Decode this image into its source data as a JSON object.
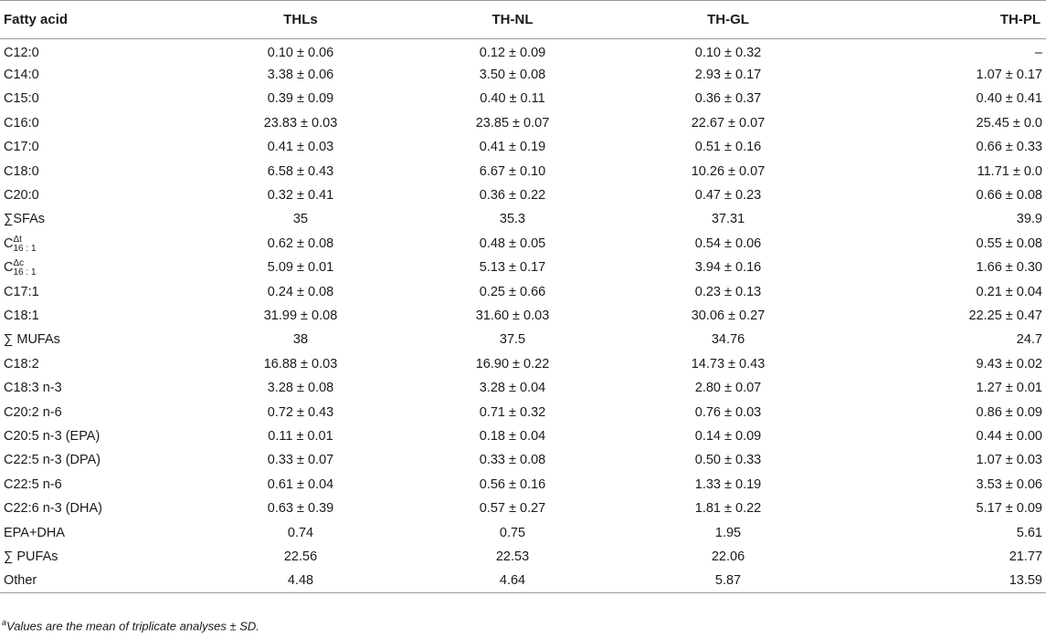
{
  "table": {
    "headers": [
      "Fatty acid",
      "THLs",
      "TH-NL",
      "TH-GL",
      "TH-PL"
    ],
    "rows": [
      {
        "label": "C12:0",
        "values": [
          "0.10 ± 0.06",
          "0.12 ± 0.09",
          "0.10 ± 0.32",
          "–"
        ]
      },
      {
        "label": "C14:0",
        "values": [
          "3.38 ± 0.06",
          "3.50 ± 0.08",
          "2.93 ± 0.17",
          "1.07 ± 0.17"
        ]
      },
      {
        "label": "C15:0",
        "values": [
          "0.39 ± 0.09",
          "0.40 ± 0.11",
          "0.36 ± 0.37",
          "0.40 ± 0.41"
        ]
      },
      {
        "label": "C16:0",
        "values": [
          "23.83 ± 0.03",
          "23.85 ± 0.07",
          "22.67 ± 0.07",
          "25.45 ± 0.0"
        ]
      },
      {
        "label": "C17:0",
        "values": [
          "0.41 ± 0.03",
          "0.41 ± 0.19",
          "0.51 ± 0.16",
          "0.66 ± 0.33"
        ]
      },
      {
        "label": "C18:0",
        "values": [
          "6.58 ± 0.43",
          "6.67 ± 0.10",
          "10.26 ± 0.07",
          "11.71 ± 0.0"
        ]
      },
      {
        "label": "C20:0",
        "values": [
          "0.32 ± 0.41",
          "0.36 ± 0.22",
          "0.47 ± 0.23",
          "0.66 ± 0.08"
        ]
      },
      {
        "label": "∑SFAs",
        "values": [
          "35",
          "35.3",
          "37.31",
          "39.9"
        ]
      },
      {
        "label_base": "C",
        "label_sup": "Δt",
        "label_sub": "16 : 1",
        "values": [
          "0.62 ± 0.08",
          "0.48 ± 0.05",
          "0.54 ± 0.06",
          "0.55 ± 0.08"
        ]
      },
      {
        "label_base": "C",
        "label_sup": "Δc",
        "label_sub": "16 : 1",
        "values": [
          "5.09 ± 0.01",
          "5.13 ± 0.17",
          "3.94 ± 0.16",
          "1.66 ± 0.30"
        ]
      },
      {
        "label": "C17:1",
        "values": [
          "0.24 ± 0.08",
          "0.25 ± 0.66",
          "0.23 ± 0.13",
          "0.21 ± 0.04"
        ]
      },
      {
        "label": "C18:1",
        "values": [
          "31.99 ± 0.08",
          "31.60 ± 0.03",
          "30.06 ± 0.27",
          "22.25 ± 0.47"
        ]
      },
      {
        "label": "∑ MUFAs",
        "values": [
          "38",
          "37.5",
          "34.76",
          "24.7"
        ]
      },
      {
        "label": "C18:2",
        "values": [
          "16.88 ± 0.03",
          "16.90 ± 0.22",
          "14.73 ± 0.43",
          "9.43 ± 0.02"
        ]
      },
      {
        "label": "C18:3 n-3",
        "values": [
          "3.28 ± 0.08",
          "3.28 ± 0.04",
          "2.80 ± 0.07",
          "1.27 ± 0.01"
        ]
      },
      {
        "label": "C20:2 n-6",
        "values": [
          "0.72 ± 0.43",
          "0.71 ± 0.32",
          "0.76 ± 0.03",
          "0.86 ± 0.09"
        ]
      },
      {
        "label": "C20:5 n-3 (EPA)",
        "values": [
          "0.11 ± 0.01",
          "0.18 ± 0.04",
          "0.14 ± 0.09",
          "0.44 ± 0.00"
        ]
      },
      {
        "label": "C22:5 n-3 (DPA)",
        "values": [
          "0.33 ± 0.07",
          "0.33 ± 0.08",
          "0.50 ± 0.33",
          "1.07 ± 0.03"
        ]
      },
      {
        "label": "C22:5 n-6",
        "values": [
          "0.61 ± 0.04",
          "0.56 ± 0.16",
          "1.33 ± 0.19",
          "3.53 ± 0.06"
        ]
      },
      {
        "label": "C22:6 n-3 (DHA)",
        "values": [
          "0.63 ± 0.39",
          "0.57 ± 0.27",
          "1.81 ± 0.22",
          "5.17 ± 0.09"
        ]
      },
      {
        "label": "EPA+DHA",
        "values": [
          "0.74",
          "0.75",
          "1.95",
          "5.61"
        ]
      },
      {
        "label": "∑ PUFAs",
        "values": [
          "22.56",
          "22.53",
          "22.06",
          "21.77"
        ]
      },
      {
        "label": "Other",
        "values": [
          "4.48",
          "4.64",
          "5.87",
          "13.59"
        ]
      }
    ]
  },
  "footnote": {
    "marker": "a",
    "text": "Values are the mean of triplicate analyses ± SD."
  }
}
